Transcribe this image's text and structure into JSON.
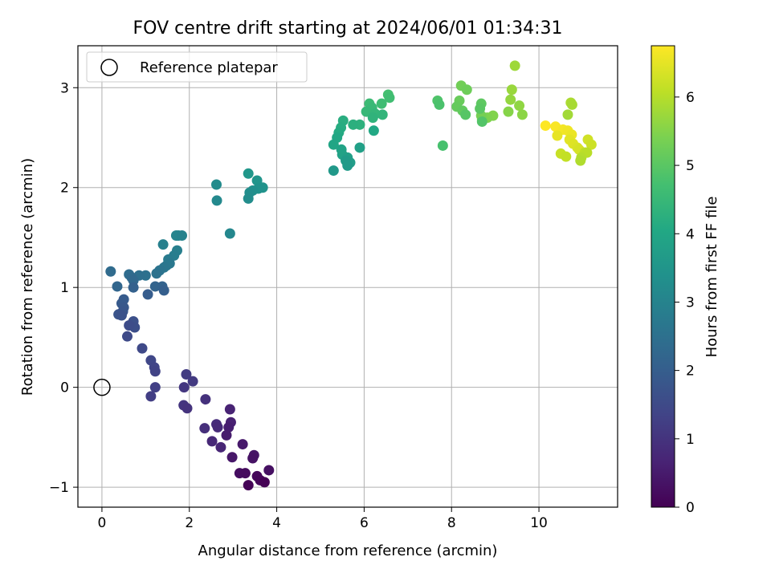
{
  "chart_data": {
    "type": "scatter",
    "title": "FOV centre drift starting at 2024/06/01 01:34:31",
    "xlabel": "Angular distance from reference (arcmin)",
    "ylabel": "Rotation from reference (arcmin)",
    "xlim": [
      -0.55,
      11.8
    ],
    "ylim": [
      -1.2,
      3.42
    ],
    "x_ticks": [
      0,
      2,
      4,
      6,
      8,
      10
    ],
    "x_tick_labels": [
      "0",
      "2",
      "4",
      "6",
      "8",
      "10"
    ],
    "y_ticks": [
      -1,
      0,
      1,
      2,
      3
    ],
    "y_tick_labels": [
      "−1",
      "0",
      "1",
      "2",
      "3"
    ],
    "grid": true,
    "legend": {
      "placement": "top-left",
      "entries": [
        "Reference platepar"
      ]
    },
    "colorbar": {
      "label": "Hours from first FF file",
      "colormap": "viridis",
      "range": [
        0,
        6.75
      ],
      "ticks": [
        0,
        1,
        2,
        3,
        4,
        5,
        6
      ],
      "tick_labels": [
        "0",
        "1",
        "2",
        "3",
        "4",
        "5",
        "6"
      ]
    },
    "reference_point": {
      "name": "Reference platepar",
      "x": 0,
      "y": 0
    },
    "series": [
      {
        "points": [
          [
            10.15,
            2.62
          ],
          [
            10.38,
            2.61
          ],
          [
            10.55,
            2.58
          ],
          [
            10.66,
            2.57
          ],
          [
            10.75,
            2.53
          ],
          [
            10.42,
            2.52
          ],
          [
            10.7,
            2.48
          ],
          [
            10.78,
            2.44
          ],
          [
            10.88,
            2.4
          ],
          [
            10.92,
            2.38
          ],
          [
            11.12,
            2.48
          ],
          [
            11.2,
            2.43
          ],
          [
            10.5,
            2.34
          ],
          [
            10.62,
            2.31
          ],
          [
            11.05,
            2.35
          ],
          [
            11.1,
            2.35
          ],
          [
            10.97,
            2.3
          ],
          [
            10.95,
            2.27
          ],
          [
            10.73,
            2.85
          ],
          [
            10.76,
            2.83
          ],
          [
            10.66,
            2.73
          ],
          [
            9.45,
            3.22
          ],
          [
            9.38,
            2.98
          ],
          [
            9.35,
            2.88
          ],
          [
            9.55,
            2.82
          ],
          [
            9.62,
            2.73
          ],
          [
            9.3,
            2.76
          ],
          [
            8.95,
            2.72
          ],
          [
            8.82,
            2.7
          ],
          [
            8.7,
            2.68
          ],
          [
            8.68,
            2.72
          ],
          [
            8.22,
            3.02
          ],
          [
            8.35,
            2.98
          ],
          [
            8.18,
            2.87
          ],
          [
            8.12,
            2.81
          ],
          [
            8.25,
            2.77
          ],
          [
            8.68,
            2.84
          ],
          [
            8.65,
            2.79
          ],
          [
            8.32,
            2.73
          ],
          [
            8.7,
            2.66
          ],
          [
            7.68,
            2.87
          ],
          [
            7.72,
            2.83
          ],
          [
            7.8,
            2.42
          ],
          [
            6.55,
            2.93
          ],
          [
            6.58,
            2.9
          ],
          [
            6.4,
            2.84
          ],
          [
            6.12,
            2.84
          ],
          [
            6.18,
            2.8
          ],
          [
            6.05,
            2.76
          ],
          [
            6.25,
            2.74
          ],
          [
            6.42,
            2.73
          ],
          [
            6.2,
            2.7
          ],
          [
            5.9,
            2.63
          ],
          [
            5.75,
            2.63
          ],
          [
            5.52,
            2.67
          ],
          [
            5.47,
            2.6
          ],
          [
            5.42,
            2.55
          ],
          [
            6.22,
            2.57
          ],
          [
            5.38,
            2.5
          ],
          [
            5.3,
            2.43
          ],
          [
            5.48,
            2.38
          ],
          [
            5.5,
            2.33
          ],
          [
            5.9,
            2.4
          ],
          [
            5.62,
            2.3
          ],
          [
            5.68,
            2.25
          ],
          [
            5.58,
            2.27
          ],
          [
            5.62,
            2.22
          ],
          [
            5.3,
            2.17
          ],
          [
            3.35,
            2.14
          ],
          [
            3.55,
            2.07
          ],
          [
            3.68,
            2.0
          ],
          [
            3.58,
            1.99
          ],
          [
            3.45,
            1.97
          ],
          [
            3.38,
            1.95
          ],
          [
            3.35,
            1.89
          ],
          [
            2.62,
            2.03
          ],
          [
            2.63,
            1.87
          ],
          [
            2.93,
            1.54
          ],
          [
            1.75,
            1.52
          ],
          [
            1.7,
            1.52
          ],
          [
            1.83,
            1.52
          ],
          [
            1.4,
            1.43
          ],
          [
            1.72,
            1.37
          ],
          [
            1.65,
            1.32
          ],
          [
            1.52,
            1.28
          ],
          [
            1.48,
            1.22
          ],
          [
            1.55,
            1.24
          ],
          [
            1.42,
            1.2
          ],
          [
            1.32,
            1.17
          ],
          [
            1.25,
            1.14
          ],
          [
            1.0,
            1.12
          ],
          [
            0.85,
            1.12
          ],
          [
            0.62,
            1.13
          ],
          [
            0.2,
            1.16
          ],
          [
            0.68,
            1.1
          ],
          [
            0.72,
            1.07
          ],
          [
            0.35,
            1.01
          ],
          [
            1.22,
            1.01
          ],
          [
            1.38,
            1.01
          ],
          [
            0.72,
            1.0
          ],
          [
            1.42,
            0.97
          ],
          [
            1.05,
            0.93
          ],
          [
            0.5,
            0.88
          ],
          [
            0.45,
            0.84
          ],
          [
            0.5,
            0.8
          ],
          [
            0.48,
            0.76
          ],
          [
            0.38,
            0.73
          ],
          [
            0.45,
            0.72
          ],
          [
            0.72,
            0.66
          ],
          [
            0.75,
            0.6
          ],
          [
            0.62,
            0.62
          ],
          [
            0.58,
            0.51
          ],
          [
            0.92,
            0.39
          ],
          [
            1.12,
            0.27
          ],
          [
            1.2,
            0.2
          ],
          [
            1.22,
            0.16
          ],
          [
            1.22,
            0.0
          ],
          [
            1.12,
            -0.09
          ],
          [
            1.93,
            0.13
          ],
          [
            2.08,
            0.06
          ],
          [
            1.88,
            0.0
          ],
          [
            1.87,
            -0.18
          ],
          [
            1.95,
            -0.21
          ],
          [
            2.37,
            -0.12
          ],
          [
            2.35,
            -0.41
          ],
          [
            2.62,
            -0.37
          ],
          [
            2.65,
            -0.4
          ],
          [
            2.52,
            -0.54
          ],
          [
            2.72,
            -0.6
          ],
          [
            2.93,
            -0.22
          ],
          [
            2.95,
            -0.35
          ],
          [
            2.9,
            -0.4
          ],
          [
            2.85,
            -0.48
          ],
          [
            3.22,
            -0.57
          ],
          [
            2.98,
            -0.7
          ],
          [
            3.48,
            -0.68
          ],
          [
            3.45,
            -0.71
          ],
          [
            3.82,
            -0.83
          ],
          [
            3.15,
            -0.86
          ],
          [
            3.28,
            -0.86
          ],
          [
            3.55,
            -0.89
          ],
          [
            3.62,
            -0.93
          ],
          [
            3.35,
            -0.98
          ],
          [
            3.72,
            -0.95
          ]
        ]
      }
    ]
  }
}
